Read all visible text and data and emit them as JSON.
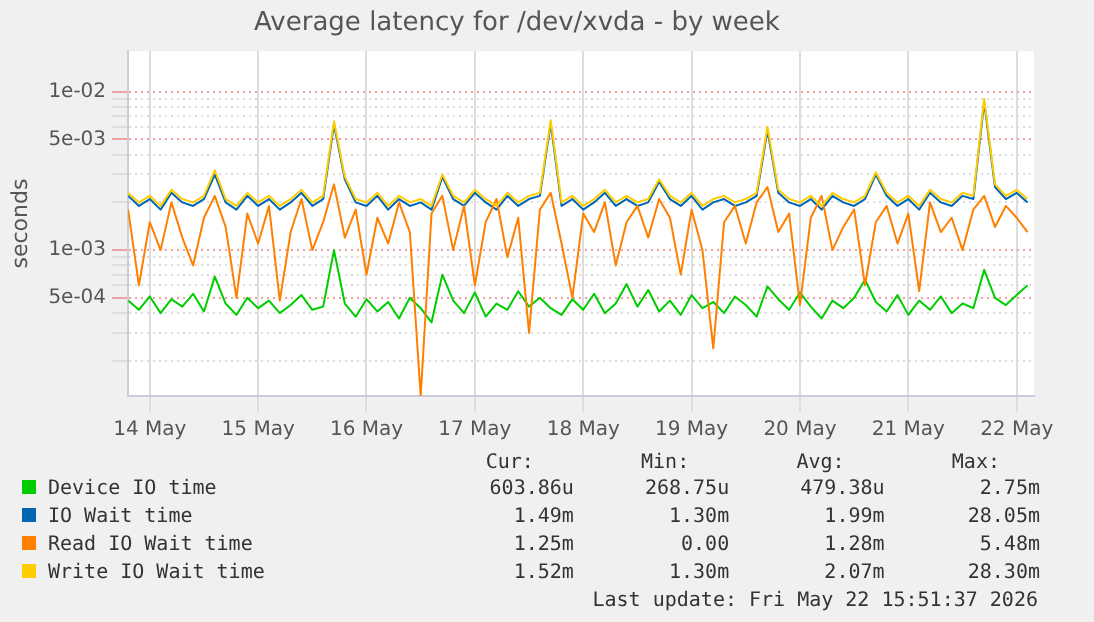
{
  "chart_data": {
    "type": "line",
    "title": "Average latency for /dev/xvda - by week",
    "ylabel": "seconds",
    "x": [
      "2026-05-14T07:12",
      "2026-05-14T09:36",
      "2026-05-14T12:00",
      "2026-05-14T14:24",
      "2026-05-14T16:48",
      "2026-05-14T19:12",
      "2026-05-14T21:36",
      "2026-05-15T00:00",
      "2026-05-15T02:24",
      "2026-05-15T04:48",
      "2026-05-15T07:12",
      "2026-05-15T09:36",
      "2026-05-15T12:00",
      "2026-05-15T14:24",
      "2026-05-15T16:48",
      "2026-05-15T19:12",
      "2026-05-15T21:36",
      "2026-05-16T00:00",
      "2026-05-16T02:24",
      "2026-05-16T04:48",
      "2026-05-16T07:12",
      "2026-05-16T09:36",
      "2026-05-16T12:00",
      "2026-05-16T14:24",
      "2026-05-16T16:48",
      "2026-05-16T19:12",
      "2026-05-16T21:36",
      "2026-05-17T00:00",
      "2026-05-17T02:24",
      "2026-05-17T04:48",
      "2026-05-17T07:12",
      "2026-05-17T09:36",
      "2026-05-17T12:00",
      "2026-05-17T14:24",
      "2026-05-17T16:48",
      "2026-05-17T19:12",
      "2026-05-17T21:36",
      "2026-05-18T00:00",
      "2026-05-18T02:24",
      "2026-05-18T04:48",
      "2026-05-18T07:12",
      "2026-05-18T09:36",
      "2026-05-18T12:00",
      "2026-05-18T14:24",
      "2026-05-18T16:48",
      "2026-05-18T19:12",
      "2026-05-18T21:36",
      "2026-05-19T00:00",
      "2026-05-19T02:24",
      "2026-05-19T04:48",
      "2026-05-19T07:12",
      "2026-05-19T09:36",
      "2026-05-19T12:00",
      "2026-05-19T14:24",
      "2026-05-19T16:48",
      "2026-05-19T19:12",
      "2026-05-19T21:36",
      "2026-05-20T00:00",
      "2026-05-20T02:24",
      "2026-05-20T04:48",
      "2026-05-20T07:12",
      "2026-05-20T09:36",
      "2026-05-20T12:00",
      "2026-05-20T14:24",
      "2026-05-20T16:48",
      "2026-05-20T19:12",
      "2026-05-20T21:36",
      "2026-05-21T00:00",
      "2026-05-21T02:24",
      "2026-05-21T04:48",
      "2026-05-21T07:12",
      "2026-05-21T09:36",
      "2026-05-21T12:00",
      "2026-05-21T14:24",
      "2026-05-21T16:48",
      "2026-05-21T19:12",
      "2026-05-21T21:36",
      "2026-05-22T00:00",
      "2026-05-22T02:24",
      "2026-05-22T04:48",
      "2026-05-22T07:12",
      "2026-05-22T09:36",
      "2026-05-22T12:00",
      "2026-05-22T14:24"
    ],
    "xlim": [
      "2026-05-14T07:12",
      "2026-05-22T15:50"
    ],
    "xticks": [
      {
        "value": "2026-05-14T12:00",
        "label": "14 May"
      },
      {
        "value": "2026-05-15T12:00",
        "label": "15 May"
      },
      {
        "value": "2026-05-16T12:00",
        "label": "16 May"
      },
      {
        "value": "2026-05-17T12:00",
        "label": "17 May"
      },
      {
        "value": "2026-05-18T12:00",
        "label": "18 May"
      },
      {
        "value": "2026-05-19T12:00",
        "label": "19 May"
      },
      {
        "value": "2026-05-20T12:00",
        "label": "20 May"
      },
      {
        "value": "2026-05-21T12:00",
        "label": "21 May"
      },
      {
        "value": "2026-05-22T12:00",
        "label": "22 May"
      }
    ],
    "ylim": [
      0.00012,
      0.018
    ],
    "log": true,
    "yticks": [
      {
        "value": 0.0002,
        "label": null
      },
      {
        "value": 0.0003,
        "label": null
      },
      {
        "value": 0.0004,
        "label": null
      },
      {
        "value": 0.0005,
        "label": "5e-04"
      },
      {
        "value": 0.0006,
        "label": null
      },
      {
        "value": 0.0007,
        "label": null
      },
      {
        "value": 0.0008,
        "label": null
      },
      {
        "value": 0.0009,
        "label": null
      },
      {
        "value": 0.001,
        "label": "1e-03"
      },
      {
        "value": 0.002,
        "label": null
      },
      {
        "value": 0.003,
        "label": null
      },
      {
        "value": 0.004,
        "label": null
      },
      {
        "value": 0.005,
        "label": "5e-03"
      },
      {
        "value": 0.006,
        "label": null
      },
      {
        "value": 0.007,
        "label": null
      },
      {
        "value": 0.008,
        "label": null
      },
      {
        "value": 0.009,
        "label": null
      },
      {
        "value": 0.01,
        "label": "1e-02"
      }
    ],
    "grid": true,
    "legend": "bottom",
    "series": [
      {
        "name": "Device IO time",
        "color": "#00cc00",
        "values": [
          0.00048,
          0.00042,
          0.00051,
          0.0004,
          0.00049,
          0.00044,
          0.00053,
          0.00041,
          0.00068,
          0.00046,
          0.00039,
          0.0005,
          0.00043,
          0.00048,
          0.0004,
          0.00045,
          0.00052,
          0.00042,
          0.00044,
          0.001,
          0.00046,
          0.00038,
          0.00049,
          0.00041,
          0.00047,
          0.00037,
          0.0005,
          0.00043,
          0.00035,
          0.0007,
          0.00048,
          0.0004,
          0.00054,
          0.00038,
          0.00046,
          0.00042,
          0.00055,
          0.00044,
          0.0005,
          0.00043,
          0.00039,
          0.00049,
          0.00042,
          0.00053,
          0.0004,
          0.00046,
          0.00061,
          0.00044,
          0.00056,
          0.00041,
          0.00048,
          0.00039,
          0.00052,
          0.00043,
          0.00047,
          0.0004,
          0.00051,
          0.00045,
          0.00038,
          0.00059,
          0.00049,
          0.00042,
          0.00054,
          0.00044,
          0.00037,
          0.00048,
          0.00043,
          0.0005,
          0.00065,
          0.00047,
          0.00041,
          0.00052,
          0.00039,
          0.00048,
          0.00042,
          0.00051,
          0.0004,
          0.00046,
          0.00043,
          0.00075,
          0.0005,
          0.00045,
          0.00052,
          0.0006
        ]
      },
      {
        "name": "IO Wait time",
        "color": "#0066b3",
        "values": [
          0.0022,
          0.0019,
          0.0021,
          0.0018,
          0.0023,
          0.002,
          0.0019,
          0.0021,
          0.003,
          0.002,
          0.0018,
          0.0022,
          0.0019,
          0.0021,
          0.0018,
          0.002,
          0.0023,
          0.0019,
          0.0021,
          0.0062,
          0.0028,
          0.002,
          0.0019,
          0.0022,
          0.0018,
          0.0021,
          0.0019,
          0.002,
          0.0018,
          0.0029,
          0.0021,
          0.0019,
          0.0023,
          0.002,
          0.0018,
          0.0022,
          0.0019,
          0.0021,
          0.0022,
          0.0063,
          0.0019,
          0.0021,
          0.0018,
          0.002,
          0.0023,
          0.0019,
          0.0021,
          0.0019,
          0.002,
          0.0027,
          0.0021,
          0.0019,
          0.0022,
          0.0018,
          0.002,
          0.0021,
          0.0019,
          0.002,
          0.0022,
          0.0057,
          0.0023,
          0.002,
          0.0019,
          0.0021,
          0.0018,
          0.0022,
          0.002,
          0.0019,
          0.0021,
          0.003,
          0.0022,
          0.0019,
          0.0021,
          0.0018,
          0.0023,
          0.002,
          0.0019,
          0.0022,
          0.0021,
          0.0086,
          0.0025,
          0.0021,
          0.0023,
          0.002
        ]
      },
      {
        "name": "Read IO Wait time",
        "color": "#ff8000",
        "values": [
          0.0018,
          0.0006,
          0.0015,
          0.001,
          0.002,
          0.0012,
          0.0008,
          0.0016,
          0.0022,
          0.0014,
          0.0005,
          0.0017,
          0.0011,
          0.0019,
          0.00048,
          0.0013,
          0.0021,
          0.001,
          0.0015,
          0.0026,
          0.0012,
          0.0018,
          0.0007,
          0.0016,
          0.0011,
          0.002,
          0.0013,
          0.00012,
          0.0017,
          0.0022,
          0.001,
          0.0019,
          0.0006,
          0.0015,
          0.0021,
          0.0009,
          0.0016,
          0.0003,
          0.0018,
          0.0023,
          0.0011,
          0.0005,
          0.0017,
          0.0013,
          0.002,
          0.0008,
          0.0015,
          0.0019,
          0.0012,
          0.0021,
          0.0016,
          0.0007,
          0.0018,
          0.001,
          0.00024,
          0.0015,
          0.0019,
          0.0011,
          0.002,
          0.0025,
          0.0013,
          0.0017,
          0.00045,
          0.0016,
          0.0022,
          0.001,
          0.0014,
          0.0018,
          0.0006,
          0.0015,
          0.0019,
          0.0011,
          0.0017,
          0.00055,
          0.002,
          0.0013,
          0.0016,
          0.001,
          0.0018,
          0.0022,
          0.0014,
          0.0019,
          0.0016,
          0.0013
        ]
      },
      {
        "name": "Write IO Wait time",
        "color": "#ffcc00",
        "values": [
          0.0023,
          0.002,
          0.0022,
          0.0019,
          0.0024,
          0.0021,
          0.002,
          0.0022,
          0.0032,
          0.0021,
          0.0019,
          0.0023,
          0.002,
          0.0022,
          0.0019,
          0.0021,
          0.0024,
          0.002,
          0.0022,
          0.0065,
          0.0029,
          0.0021,
          0.002,
          0.0023,
          0.0019,
          0.0022,
          0.002,
          0.0021,
          0.0019,
          0.003,
          0.0022,
          0.002,
          0.0024,
          0.0021,
          0.0019,
          0.0023,
          0.002,
          0.0022,
          0.0023,
          0.0066,
          0.002,
          0.0022,
          0.0019,
          0.0021,
          0.0024,
          0.002,
          0.0022,
          0.002,
          0.0021,
          0.0028,
          0.0022,
          0.002,
          0.0023,
          0.0019,
          0.0021,
          0.0022,
          0.002,
          0.0021,
          0.0023,
          0.006,
          0.0024,
          0.0021,
          0.002,
          0.0022,
          0.0019,
          0.0023,
          0.0021,
          0.002,
          0.0022,
          0.0031,
          0.0023,
          0.002,
          0.0022,
          0.0019,
          0.0024,
          0.0021,
          0.002,
          0.0023,
          0.0022,
          0.009,
          0.0026,
          0.0022,
          0.0024,
          0.0021
        ]
      }
    ],
    "annotations": [
      "Cur:",
      "Min:",
      "Avg:",
      "Max:",
      "603.86u",
      "268.75u",
      "479.38u",
      "2.75m",
      "1.49m",
      "1.30m",
      "1.99m",
      "28.05m",
      "1.25m",
      "0.00",
      "1.28m",
      "5.48m",
      "1.52m",
      "1.30m",
      "2.07m",
      "28.30m",
      "Last update: Fri May 22 15:51:37 2026"
    ]
  }
}
